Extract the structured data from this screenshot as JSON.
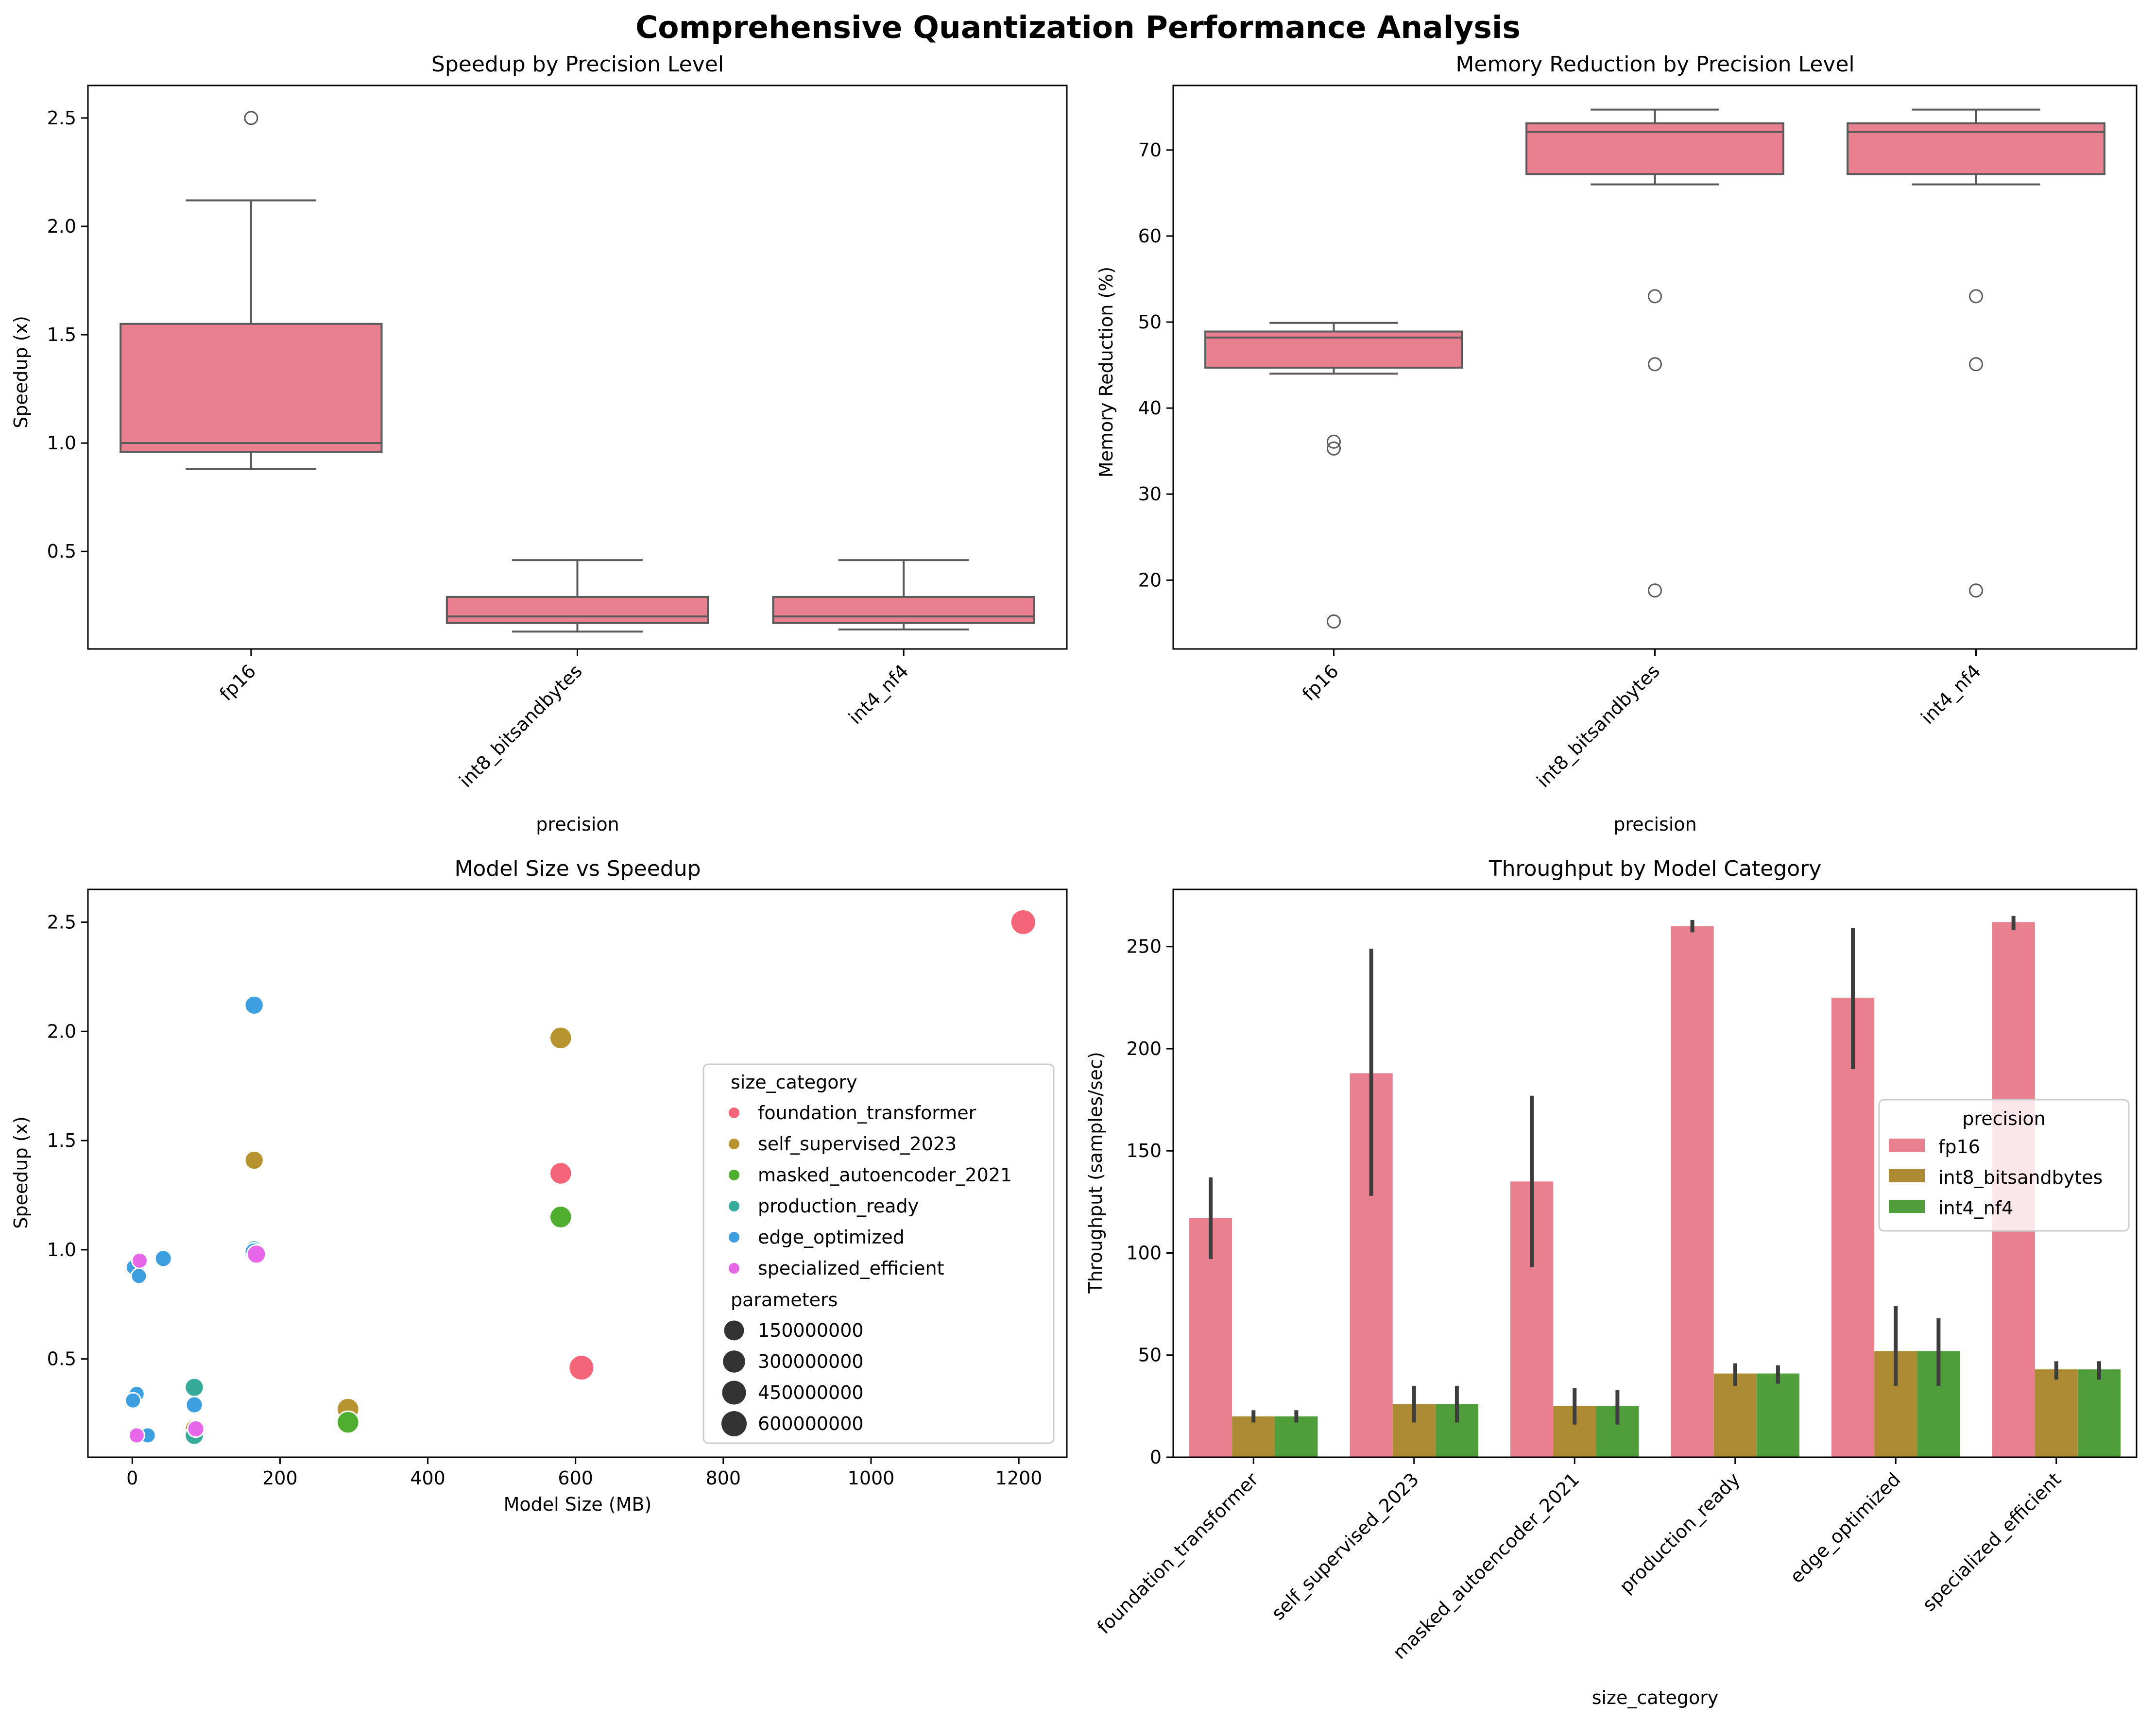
{
  "figure": {
    "title": "Comprehensive Quantization Performance Analysis"
  },
  "colors": {
    "fp16": "#e8808f",
    "fp16_edge": "#5a5a5a",
    "int8": "#ad8b34",
    "int4": "#4f9e3b",
    "foundation_transformer": "#f5657a",
    "self_supervised_2023": "#b89430",
    "masked_autoencoder_2021": "#4fae2f",
    "production_ready": "#36ab9a",
    "edge_optimized": "#3d9fe0",
    "specialized_efficient": "#e668e8",
    "errorbar": "#3d3d3d"
  },
  "chart_data": [
    {
      "type": "box",
      "title": "Speedup by Precision Level",
      "xlabel": "precision",
      "ylabel": "Speedup (x)",
      "ylim": [
        0.05,
        2.65
      ],
      "yticks": [
        0.5,
        1.0,
        1.5,
        2.0,
        2.5
      ],
      "ytick_labels": [
        "0.5",
        "1.0",
        "1.5",
        "2.0",
        "2.5"
      ],
      "categories": [
        "fp16",
        "int8_bitsandbytes",
        "int4_nf4"
      ],
      "boxes": [
        {
          "whisker_low": 0.88,
          "q1": 0.96,
          "median": 1.0,
          "q3": 1.55,
          "whisker_high": 2.12,
          "outliers": [
            2.5
          ]
        },
        {
          "whisker_low": 0.13,
          "q1": 0.17,
          "median": 0.2,
          "q3": 0.29,
          "whisker_high": 0.46,
          "outliers": []
        },
        {
          "whisker_low": 0.14,
          "q1": 0.17,
          "median": 0.2,
          "q3": 0.29,
          "whisker_high": 0.46,
          "outliers": []
        }
      ]
    },
    {
      "type": "box",
      "title": "Memory Reduction by Precision Level",
      "xlabel": "precision",
      "ylabel": "Memory Reduction (%)",
      "ylim": [
        12,
        77.5
      ],
      "yticks": [
        20,
        30,
        40,
        50,
        60,
        70
      ],
      "ytick_labels": [
        "20",
        "30",
        "40",
        "50",
        "60",
        "70"
      ],
      "categories": [
        "fp16",
        "int8_bitsandbytes",
        "int4_nf4"
      ],
      "boxes": [
        {
          "whisker_low": 44.0,
          "q1": 44.7,
          "median": 48.2,
          "q3": 48.9,
          "whisker_high": 49.9,
          "outliers": [
            36.1,
            35.3,
            15.2
          ]
        },
        {
          "whisker_low": 66.0,
          "q1": 67.2,
          "median": 72.1,
          "q3": 73.1,
          "whisker_high": 74.7,
          "outliers": [
            53.0,
            45.1,
            18.8
          ]
        },
        {
          "whisker_low": 66.0,
          "q1": 67.2,
          "median": 72.1,
          "q3": 73.1,
          "whisker_high": 74.7,
          "outliers": [
            53.0,
            45.1,
            18.8
          ]
        }
      ]
    },
    {
      "type": "scatter",
      "title": "Model Size vs Speedup",
      "xlabel": "Model Size (MB)",
      "ylabel": "Speedup (x)",
      "xlim": [
        -60,
        1265
      ],
      "ylim": [
        0.05,
        2.65
      ],
      "xticks": [
        0,
        200,
        400,
        600,
        800,
        1000,
        1200
      ],
      "xtick_labels": [
        "0",
        "200",
        "400",
        "600",
        "800",
        "1000",
        "1200"
      ],
      "yticks": [
        0.5,
        1.0,
        1.5,
        2.0,
        2.5
      ],
      "ytick_labels": [
        "0.5",
        "1.0",
        "1.5",
        "2.0",
        "2.5"
      ],
      "legend": {
        "placement": "center-right",
        "hue_title": "size_category",
        "hue_items": [
          "foundation_transformer",
          "self_supervised_2023",
          "masked_autoencoder_2021",
          "production_ready",
          "edge_optimized",
          "specialized_efficient"
        ],
        "size_title": "parameters",
        "size_items": [
          "150000000",
          "300000000",
          "450000000",
          "600000000"
        ]
      },
      "points": [
        {
          "x": 1206,
          "y": 2.5,
          "category": "foundation_transformer",
          "params": 600000000
        },
        {
          "x": 580,
          "y": 1.35,
          "category": "foundation_transformer",
          "params": 300000000
        },
        {
          "x": 608,
          "y": 0.46,
          "category": "foundation_transformer",
          "params": 600000000
        },
        {
          "x": 580,
          "y": 1.97,
          "category": "self_supervised_2023",
          "params": 300000000
        },
        {
          "x": 165,
          "y": 1.41,
          "category": "self_supervised_2023",
          "params": 86000000
        },
        {
          "x": 292,
          "y": 0.27,
          "category": "self_supervised_2023",
          "params": 300000000
        },
        {
          "x": 84,
          "y": 0.18,
          "category": "self_supervised_2023",
          "params": 86000000
        },
        {
          "x": 580,
          "y": 1.15,
          "category": "masked_autoencoder_2021",
          "params": 300000000
        },
        {
          "x": 292,
          "y": 0.21,
          "category": "masked_autoencoder_2021",
          "params": 300000000
        },
        {
          "x": 165,
          "y": 1.0,
          "category": "production_ready",
          "params": 86000000
        },
        {
          "x": 84,
          "y": 0.37,
          "category": "production_ready",
          "params": 86000000
        },
        {
          "x": 84,
          "y": 0.15,
          "category": "production_ready",
          "params": 86000000
        },
        {
          "x": 165,
          "y": 2.12,
          "category": "edge_optimized",
          "params": 86000000
        },
        {
          "x": 165,
          "y": 0.99,
          "category": "edge_optimized",
          "params": 86000000
        },
        {
          "x": 42,
          "y": 0.96,
          "category": "edge_optimized",
          "params": 22000000
        },
        {
          "x": 2,
          "y": 0.92,
          "category": "edge_optimized",
          "params": 5000000
        },
        {
          "x": 9,
          "y": 0.88,
          "category": "edge_optimized",
          "params": 5000000
        },
        {
          "x": 84,
          "y": 0.29,
          "category": "edge_optimized",
          "params": 22000000
        },
        {
          "x": 6,
          "y": 0.34,
          "category": "edge_optimized",
          "params": 5000000
        },
        {
          "x": 1,
          "y": 0.31,
          "category": "edge_optimized",
          "params": 5000000
        },
        {
          "x": 21,
          "y": 0.15,
          "category": "edge_optimized",
          "params": 5000000
        },
        {
          "x": 168,
          "y": 0.98,
          "category": "specialized_efficient",
          "params": 86000000
        },
        {
          "x": 10,
          "y": 0.95,
          "category": "specialized_efficient",
          "params": 5000000
        },
        {
          "x": 86,
          "y": 0.18,
          "category": "specialized_efficient",
          "params": 22000000
        },
        {
          "x": 6,
          "y": 0.15,
          "category": "specialized_efficient",
          "params": 5000000
        }
      ]
    },
    {
      "type": "bar",
      "title": "Throughput by Model Category",
      "xlabel": "size_category",
      "ylabel": "Throughput (samples/sec)",
      "ylim": [
        0,
        278
      ],
      "yticks": [
        0,
        50,
        100,
        150,
        200,
        250
      ],
      "ytick_labels": [
        "0",
        "50",
        "100",
        "150",
        "200",
        "250"
      ],
      "categories": [
        "foundation_transformer",
        "self_supervised_2023",
        "masked_autoencoder_2021",
        "production_ready",
        "edge_optimized",
        "specialized_efficient"
      ],
      "legend": {
        "title": "precision",
        "placement": "center-right"
      },
      "series": [
        {
          "name": "fp16",
          "values": [
            117,
            188,
            135,
            260,
            225,
            262
          ],
          "err_low": [
            97,
            128,
            93,
            257,
            190,
            258
          ],
          "err_high": [
            137,
            249,
            177,
            263,
            259,
            265
          ]
        },
        {
          "name": "int8_bitsandbytes",
          "values": [
            20,
            26,
            25,
            41,
            52,
            43
          ],
          "err_low": [
            17,
            17,
            16,
            35,
            35,
            38
          ],
          "err_high": [
            23,
            35,
            34,
            46,
            74,
            47
          ]
        },
        {
          "name": "int4_nf4",
          "values": [
            20,
            26,
            25,
            41,
            52,
            43
          ],
          "err_low": [
            17,
            17,
            16,
            36,
            35,
            38
          ],
          "err_high": [
            23,
            35,
            33,
            45,
            68,
            47
          ]
        }
      ]
    }
  ]
}
